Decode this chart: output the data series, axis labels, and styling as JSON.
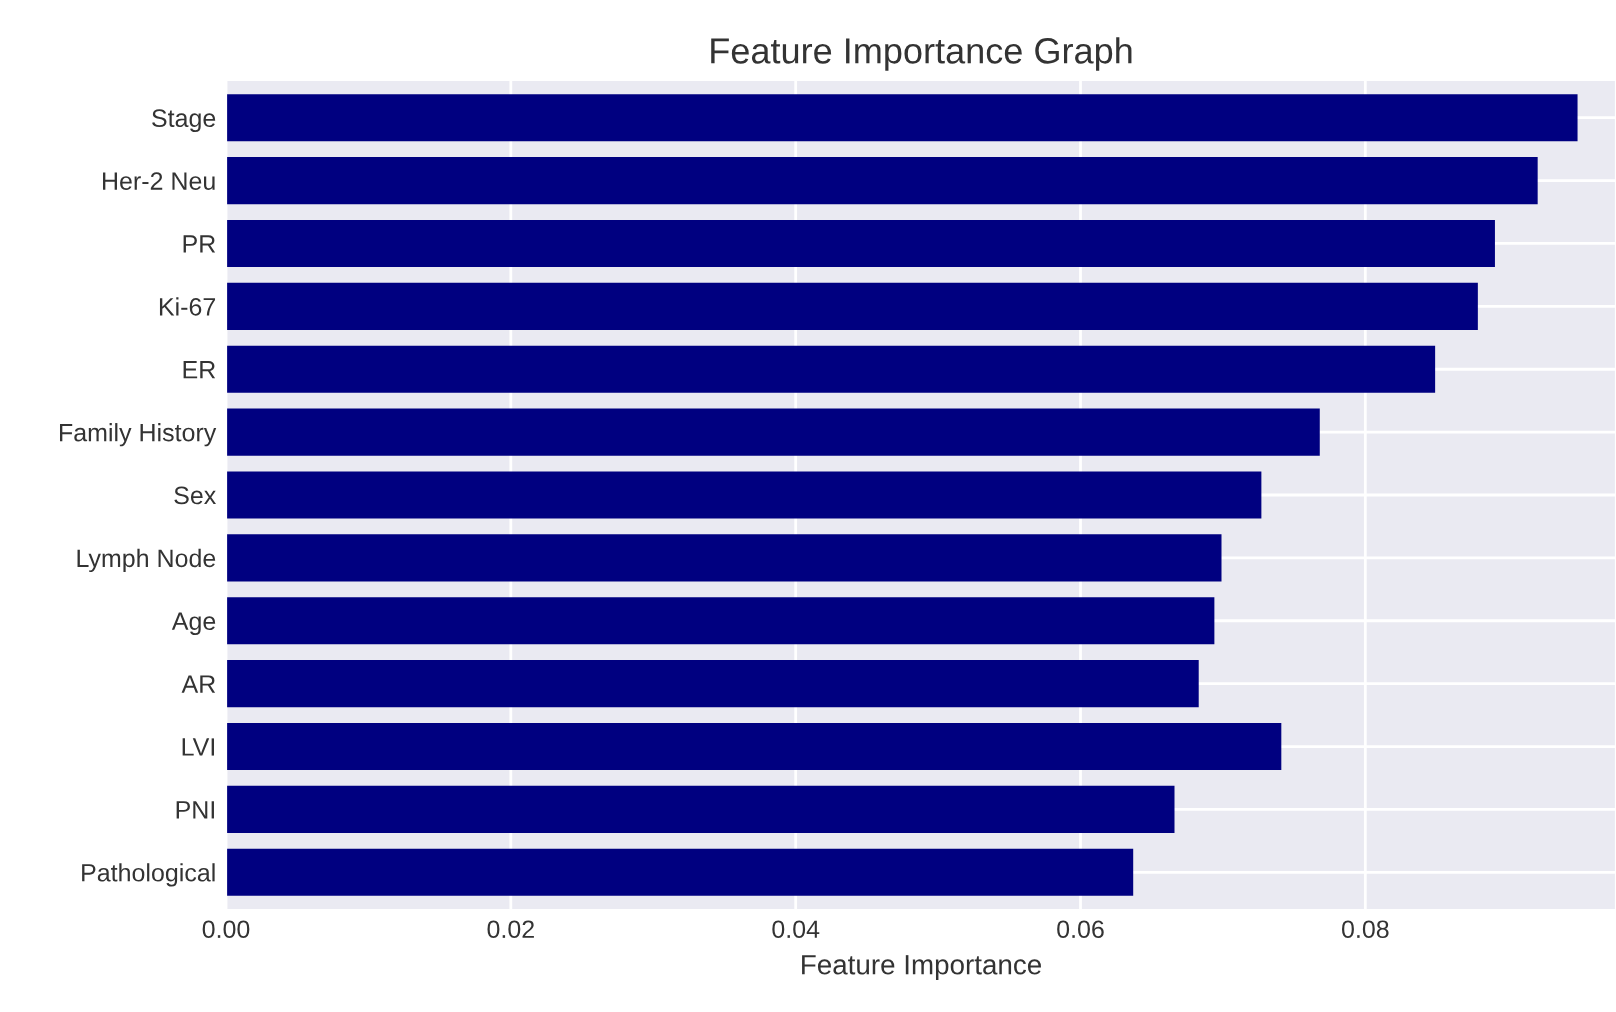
{
  "chart_data": {
    "type": "bar",
    "orientation": "horizontal",
    "title": "Feature Importance Graph",
    "xlabel": "Feature Importance",
    "categories": [
      "Stage",
      "Her-2 Neu",
      "PR",
      "Ki-67",
      "ER",
      "Family History",
      "Sex",
      "Lymph Node",
      "Age",
      "AR",
      "LVI",
      "PNI",
      "Pathological"
    ],
    "values": [
      0.0949,
      0.0921,
      0.0891,
      0.0879,
      0.0849,
      0.0768,
      0.0727,
      0.0699,
      0.0694,
      0.0683,
      0.0741,
      0.0666,
      0.0637
    ],
    "color": "#000080",
    "xlim": [
      0,
      0.0976
    ],
    "xticks": [
      {
        "value": 0,
        "label": "0.00"
      },
      0.02,
      0.04,
      0.06,
      0.08
    ],
    "grid": true,
    "legend": false
  }
}
